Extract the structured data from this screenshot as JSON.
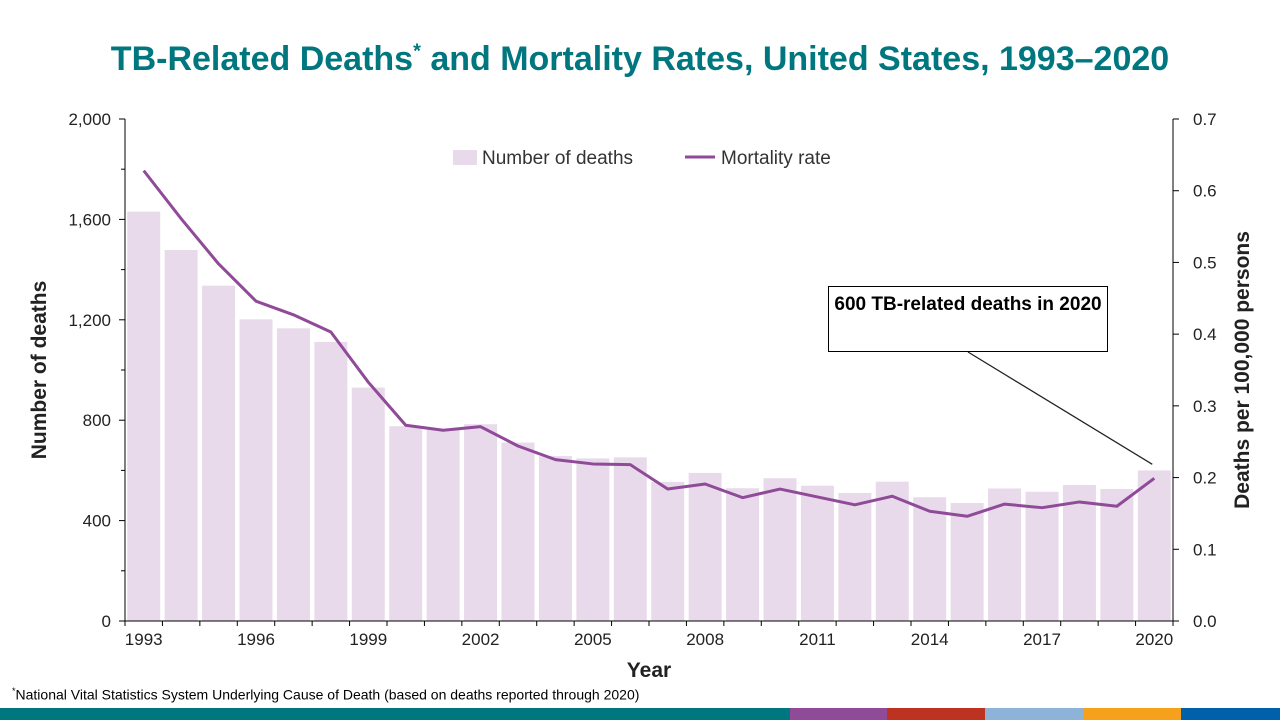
{
  "title": {
    "main": "TB-Related Deaths",
    "marker": "*",
    "rest": " and Mortality Rates, United States, 1993–2020"
  },
  "footnote": {
    "marker": "*",
    "text": "National Vital Statistics System Underlying Cause of Death (based on deaths reported through  2020)"
  },
  "callout": "600 TB-related deaths in 2020",
  "stripe_colors": [
    "#00777F",
    "#8F4A98",
    "#BE3222",
    "#8DB3D9",
    "#F5A11C",
    "#0060A9"
  ],
  "chart_data": {
    "type": "bar+line",
    "xlabel": "Year",
    "ylabel": "Number of deaths",
    "y2label": "Deaths per 100,000 persons",
    "ylim": [
      0,
      2000
    ],
    "y2lim": [
      0,
      0.7
    ],
    "yticks": [
      "0",
      "400",
      "800",
      "1,200",
      "1,600",
      "2,000"
    ],
    "y2ticks": [
      "0.0",
      "0.1",
      "0.2",
      "0.3",
      "0.4",
      "0.5",
      "0.6",
      "0.7"
    ],
    "xtick_labels": [
      "1993",
      "1996",
      "1999",
      "2002",
      "2005",
      "2008",
      "2011",
      "2014",
      "2017",
      "2020"
    ],
    "legend_position": "top-center",
    "grid": false,
    "x": [
      1993,
      1994,
      1995,
      1996,
      1997,
      1998,
      1999,
      2000,
      2001,
      2002,
      2003,
      2004,
      2005,
      2006,
      2007,
      2008,
      2009,
      2010,
      2011,
      2012,
      2013,
      2014,
      2015,
      2016,
      2017,
      2018,
      2019,
      2020
    ],
    "series": [
      {
        "name": "Number of deaths",
        "type": "bar",
        "axis": "left",
        "color": "#E9DAEB",
        "values": [
          1631,
          1478,
          1336,
          1202,
          1166,
          1112,
          930,
          776,
          764,
          784,
          711,
          657,
          648,
          652,
          554,
          590,
          529,
          569,
          539,
          510,
          555,
          493,
          470,
          528,
          515,
          542,
          526,
          600
        ]
      },
      {
        "name": "Mortality rate",
        "type": "line",
        "axis": "right",
        "color": "#8F4A98",
        "values": [
          0.628,
          0.561,
          0.498,
          0.446,
          0.427,
          0.403,
          0.333,
          0.273,
          0.266,
          0.271,
          0.244,
          0.225,
          0.219,
          0.218,
          0.184,
          0.191,
          0.172,
          0.184,
          0.173,
          0.162,
          0.174,
          0.153,
          0.146,
          0.163,
          0.158,
          0.166,
          0.16,
          0.199
        ]
      }
    ]
  }
}
